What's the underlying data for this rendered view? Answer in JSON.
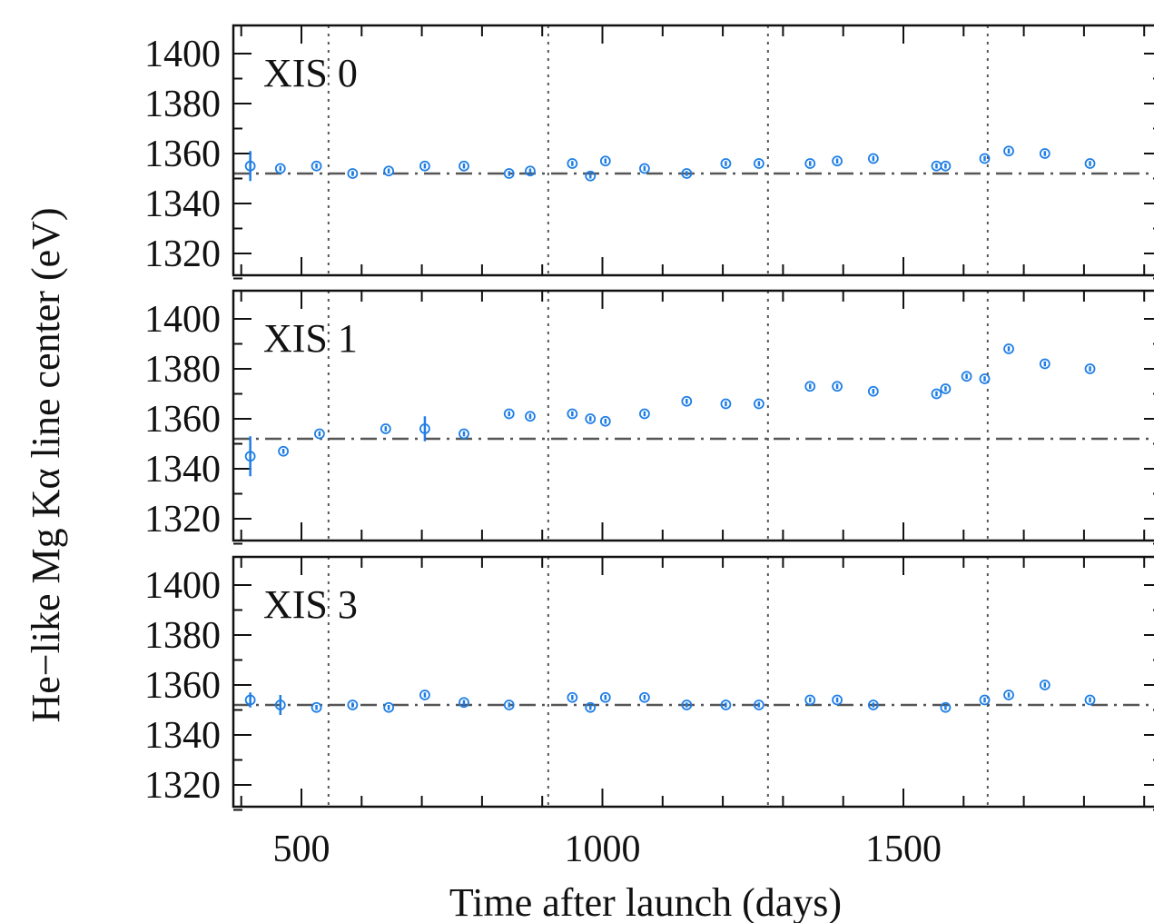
{
  "chart_data": {
    "type": "scatter",
    "xlabel": "Time after launch (days)",
    "ylabel": "He−like Mg Kα line center (eV)",
    "xlim": [
      250,
      1650
    ],
    "x_ticks": [
      500,
      1000,
      1500
    ],
    "ylim": [
      1305,
      1402
    ],
    "y_ticks": [
      1400,
      1380,
      1360,
      1340,
      1320
    ],
    "reference_line_y": 1352,
    "vertical_dotted_lines_x": [
      545,
      910,
      1275,
      1640
    ],
    "colors": {
      "points": "#1e7ee6",
      "reference": "#555555",
      "axes": "#111111"
    },
    "panels": [
      {
        "label": "XIS 0",
        "x": [
          415,
          465,
          525,
          585,
          645,
          705,
          770,
          845,
          880,
          950,
          980,
          1005,
          1070,
          1140,
          1205,
          1260,
          1345,
          1390,
          1450,
          1555,
          1570,
          1635,
          1675,
          1735,
          1810
        ],
        "y": [
          1355,
          1354,
          1355,
          1352,
          1353,
          1355,
          1355,
          1352,
          1353,
          1356,
          1351,
          1357,
          1354,
          1352,
          1356,
          1356,
          1356,
          1357,
          1358,
          1355,
          1355,
          1358,
          1361,
          1360,
          1356
        ],
        "err": [
          6,
          1,
          1,
          1,
          1,
          1,
          1,
          1,
          1,
          1,
          1,
          1,
          1,
          1,
          1,
          1,
          1,
          1,
          1,
          1,
          1,
          1,
          1,
          1,
          1
        ]
      },
      {
        "label": "XIS 1",
        "x": [
          415,
          470,
          530,
          640,
          705,
          770,
          845,
          880,
          950,
          980,
          1005,
          1070,
          1140,
          1205,
          1260,
          1345,
          1390,
          1450,
          1555,
          1570,
          1605,
          1635,
          1675,
          1735,
          1810
        ],
        "y": [
          1345,
          1347,
          1354,
          1356,
          1356,
          1354,
          1362,
          1361,
          1362,
          1360,
          1359,
          1362,
          1367,
          1366,
          1366,
          1373,
          1373,
          1371,
          1370,
          1372,
          1377,
          1376,
          1388,
          1382,
          1380
        ],
        "err": [
          8,
          1,
          1,
          1,
          5,
          1,
          1,
          1,
          1,
          1,
          1,
          1,
          1,
          1,
          1,
          1,
          1,
          1,
          1,
          1,
          1,
          1,
          1,
          1,
          1
        ]
      },
      {
        "label": "XIS 3",
        "x": [
          415,
          465,
          525,
          585,
          645,
          705,
          770,
          845,
          950,
          980,
          1005,
          1070,
          1140,
          1205,
          1260,
          1345,
          1390,
          1450,
          1570,
          1635,
          1675,
          1735,
          1810
        ],
        "y": [
          1354,
          1352,
          1351,
          1352,
          1351,
          1356,
          1353,
          1352,
          1355,
          1351,
          1355,
          1355,
          1352,
          1352,
          1352,
          1354,
          1354,
          1352,
          1351,
          1354,
          1356,
          1360,
          1354
        ],
        "err": [
          3,
          4,
          1,
          1,
          1,
          1,
          1,
          1,
          1,
          1,
          1,
          1,
          1,
          1,
          1,
          1,
          1,
          1,
          1,
          1,
          1,
          1,
          1
        ]
      }
    ]
  }
}
